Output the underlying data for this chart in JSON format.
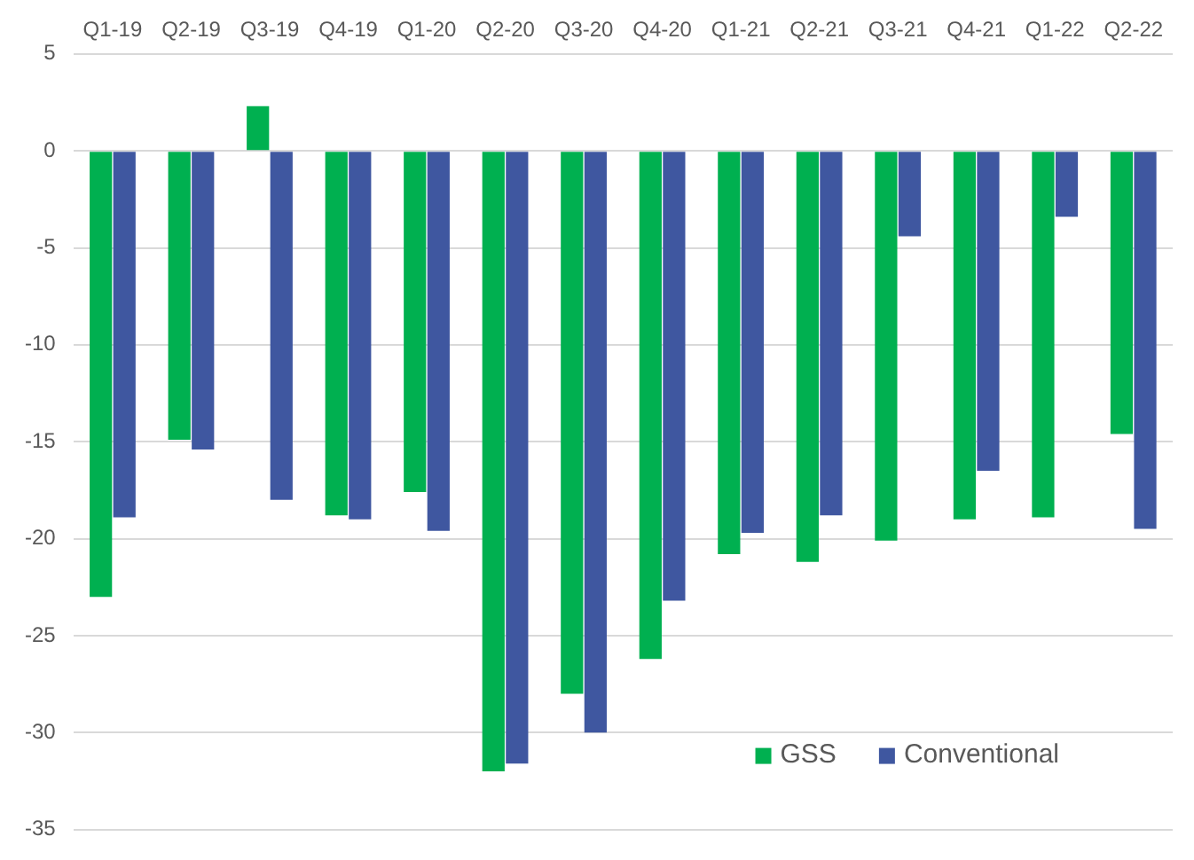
{
  "chart_data": {
    "type": "bar",
    "categories": [
      "Q1-19",
      "Q2-19",
      "Q3-19",
      "Q4-19",
      "Q1-20",
      "Q2-20",
      "Q3-20",
      "Q4-20",
      "Q1-21",
      "Q2-21",
      "Q3-21",
      "Q4-21",
      "Q1-22",
      "Q2-22"
    ],
    "series": [
      {
        "name": "GSS",
        "color": "#00b050",
        "values": [
          -23.0,
          -14.9,
          2.3,
          -18.8,
          -17.6,
          -32.0,
          -28.0,
          -26.2,
          -20.8,
          -21.2,
          -20.1,
          -19.0,
          -18.9,
          -14.6
        ]
      },
      {
        "name": "Conventional",
        "color": "#3f57a0",
        "values": [
          -18.9,
          -15.4,
          -18.0,
          -19.0,
          -19.6,
          -31.6,
          -30.0,
          -23.2,
          -19.7,
          -18.8,
          -4.4,
          -16.5,
          -3.4,
          -19.5
        ]
      }
    ],
    "ylim": [
      -35,
      5
    ],
    "yticks": [
      -35,
      -30,
      -25,
      -20,
      -15,
      -10,
      -5,
      0,
      5
    ],
    "grid": "y",
    "legend": "bottom right"
  }
}
